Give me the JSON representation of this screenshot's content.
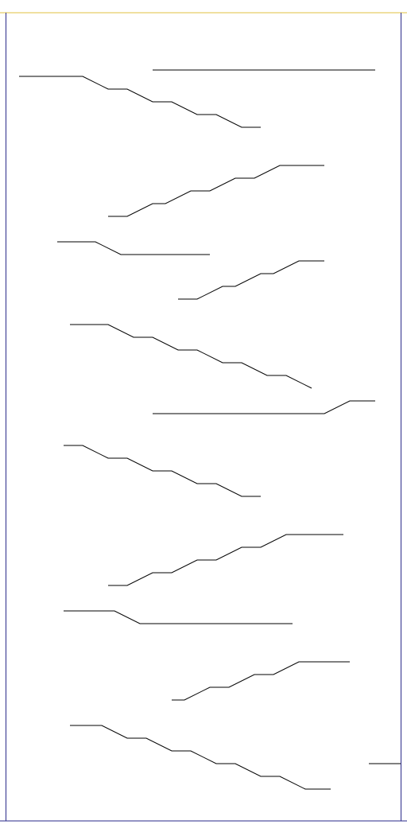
{
  "colors": {
    "background": "#ffffff",
    "frame_top": "#e0c040",
    "frame_side": "#2a2a8a",
    "frame_bottom": "#2a2a8a",
    "traces": "#000000"
  },
  "content": {
    "visible_text": []
  }
}
